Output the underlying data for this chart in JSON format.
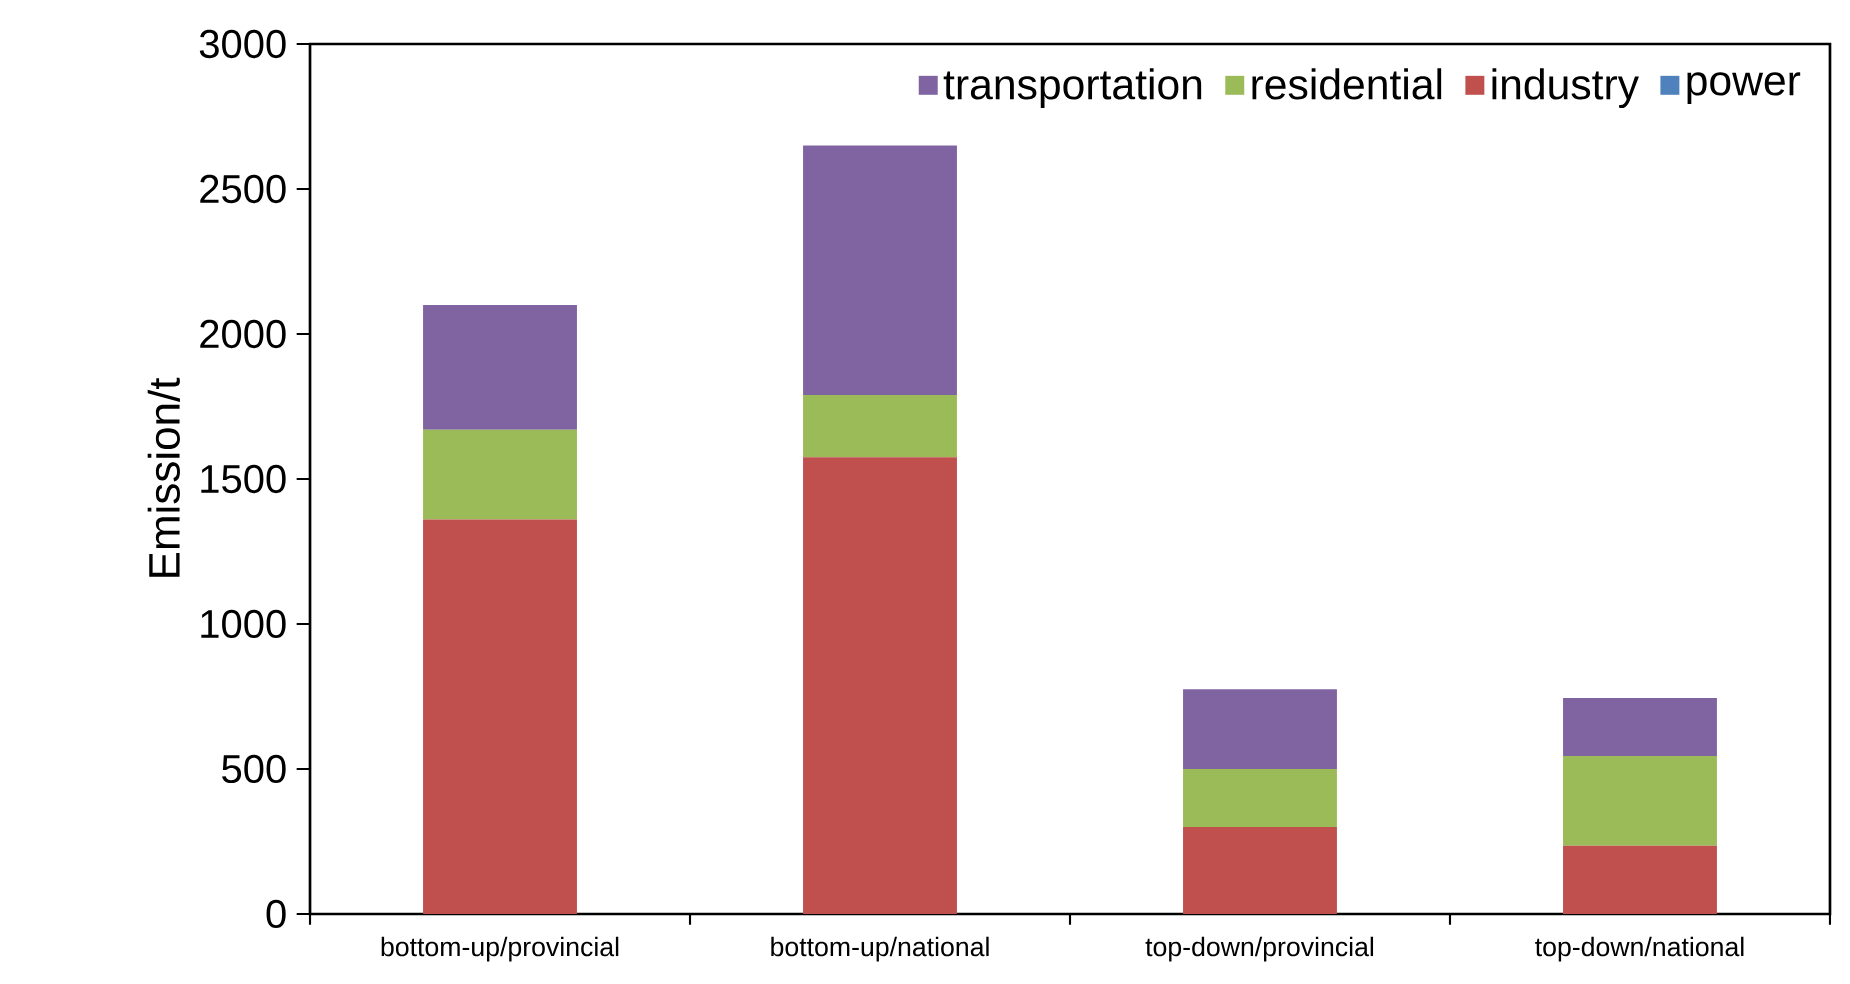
{
  "chart_data": {
    "type": "bar",
    "stacked": true,
    "ylabel": "Emission/t",
    "categories": [
      "bottom-up/provincial",
      "bottom-up/national",
      "top-down/provincial",
      "top-down/national"
    ],
    "series": [
      {
        "name": "power",
        "color": "#4f81bd",
        "values": [
          0,
          0,
          0,
          0
        ]
      },
      {
        "name": "industry",
        "color": "#c0504d",
        "values": [
          1360,
          1575,
          300,
          235
        ]
      },
      {
        "name": "residential",
        "color": "#9bbb59",
        "values": [
          310,
          215,
          200,
          310
        ]
      },
      {
        "name": "transportation",
        "color": "#8064a2",
        "values": [
          430,
          860,
          275,
          200
        ]
      }
    ],
    "ylim": [
      0,
      3000
    ],
    "yticks": [
      0,
      500,
      1000,
      1500,
      2000,
      2500,
      3000
    ],
    "grid": false,
    "legend": "top right"
  }
}
